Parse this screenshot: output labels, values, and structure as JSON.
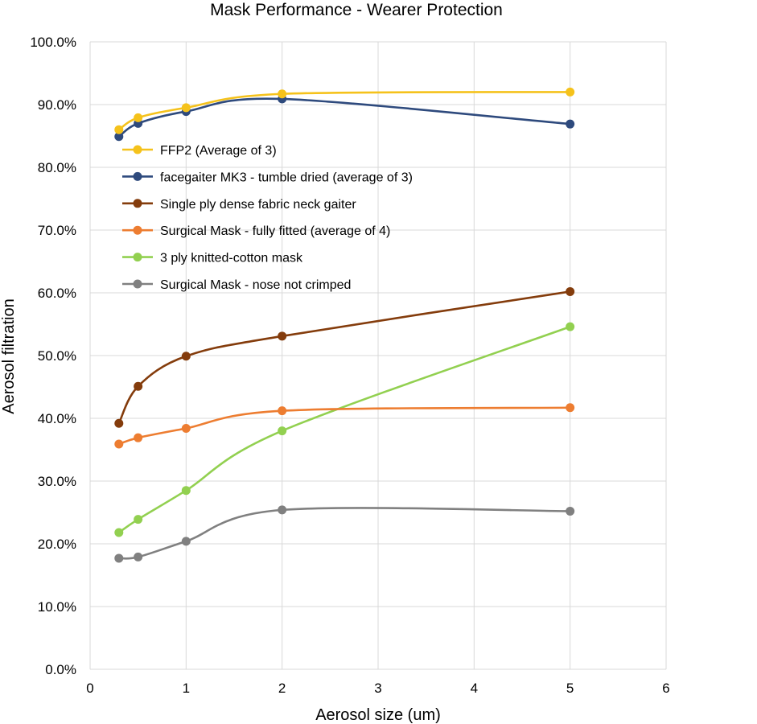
{
  "chart_data": {
    "type": "scatter",
    "title": "Mask Performance - Wearer Protection",
    "xlabel": "Aerosol size (um)",
    "ylabel": "Aerosol filtration",
    "xlim": [
      0,
      6
    ],
    "ylim": [
      0,
      100
    ],
    "x_ticks": [
      "0",
      "1",
      "2",
      "3",
      "4",
      "5",
      "6"
    ],
    "y_ticks": [
      "0.0%",
      "10.0%",
      "20.0%",
      "30.0%",
      "40.0%",
      "50.0%",
      "60.0%",
      "70.0%",
      "80.0%",
      "90.0%",
      "100.0%"
    ],
    "grid": true,
    "smoothed_lines": true,
    "legend_position": "top-left",
    "series": [
      {
        "name": "FFP2 (Average of 3)",
        "color": "#F5C21B",
        "x": [
          0.3,
          0.5,
          1,
          2,
          5
        ],
        "y": [
          86.0,
          87.9,
          89.5,
          91.7,
          92.0
        ]
      },
      {
        "name": "facegaiter MK3 - tumble dried (average of 3)",
        "color": "#2E4A7D",
        "x": [
          0.3,
          0.5,
          1,
          2,
          5
        ],
        "y": [
          84.9,
          87.0,
          88.9,
          90.9,
          86.9
        ]
      },
      {
        "name": "Single ply dense fabric neck gaiter",
        "color": "#843C0C",
        "x": [
          0.3,
          0.5,
          1,
          2,
          5
        ],
        "y": [
          39.2,
          45.1,
          49.9,
          53.1,
          60.2
        ]
      },
      {
        "name": "Surgical Mask - fully fitted (average of 4)",
        "color": "#ED7D31",
        "x": [
          0.3,
          0.5,
          1,
          2,
          5
        ],
        "y": [
          35.9,
          36.9,
          38.4,
          41.2,
          41.7
        ]
      },
      {
        "name": "3 ply knitted-cotton mask",
        "color": "#92D050",
        "x": [
          0.3,
          0.5,
          1,
          2,
          5
        ],
        "y": [
          21.8,
          23.9,
          28.5,
          38.0,
          54.6
        ]
      },
      {
        "name": "Surgical Mask - nose not crimped",
        "color": "#808080",
        "x": [
          0.3,
          0.5,
          1,
          2,
          5
        ],
        "y": [
          17.7,
          17.9,
          20.4,
          25.4,
          25.2
        ]
      }
    ]
  }
}
